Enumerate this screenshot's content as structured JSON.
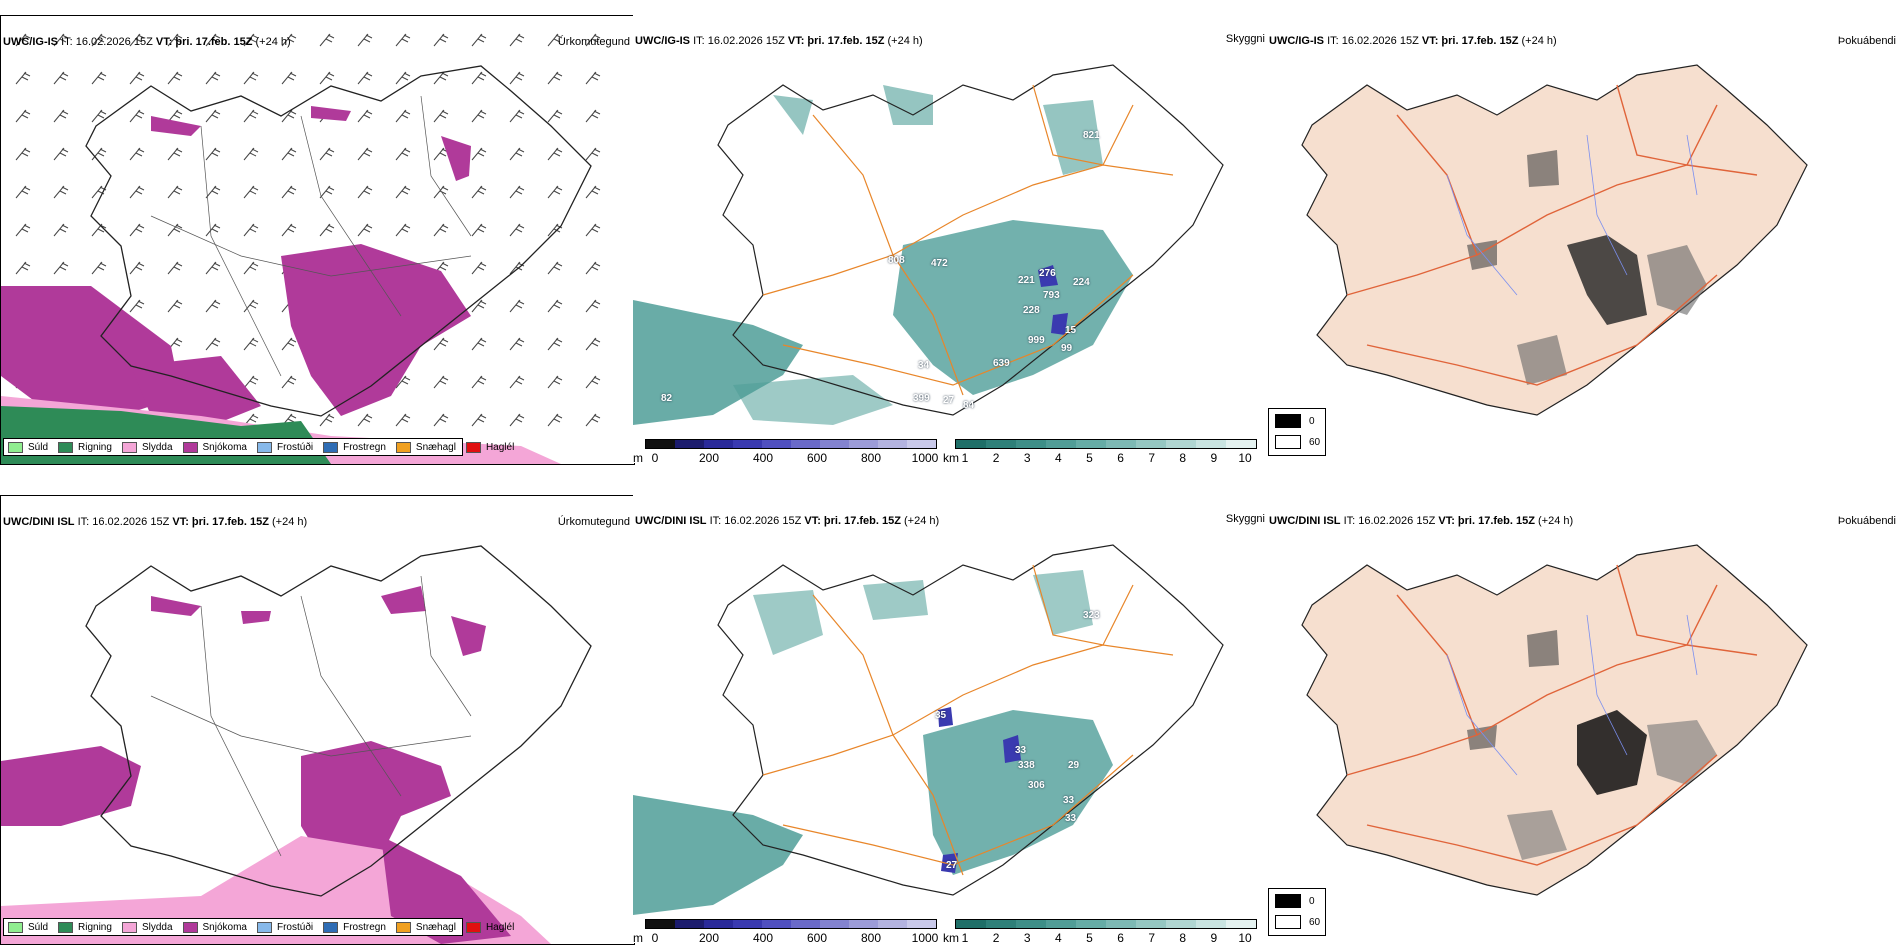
{
  "rows": [
    {
      "model": "UWC/IG-IS",
      "it_label": "IT: 16.02.2026 15Z",
      "vt_label": "VT: þri. 17.feb. 15Z",
      "lead": "(+24 h)",
      "precip_title": "Úrkomutegund",
      "vis_title": "Skyggni",
      "fog_title": "Þokuábendi",
      "vis_labels": [
        "821",
        "808",
        "472",
        "276",
        "221",
        "793",
        "224",
        "228",
        "999",
        "15",
        "99",
        "34",
        "639",
        "399",
        "27",
        "84",
        "82"
      ]
    },
    {
      "model": "UWC/DINI ISL",
      "it_label": "IT: 16.02.2026 15Z",
      "vt_label": "VT: þri. 17.feb. 15Z",
      "lead": "(+24 h)",
      "precip_title": "Úrkomutegund",
      "vis_title": "Skyggni",
      "fog_title": "Þokuábendi",
      "vis_labels": [
        "323",
        "35",
        "33",
        "338",
        "29",
        "306",
        "33",
        "33",
        "27"
      ]
    }
  ],
  "precip_legend": [
    {
      "label": "Súld",
      "color": "#90ee90"
    },
    {
      "label": "Rigning",
      "color": "#2e8b57"
    },
    {
      "label": "Slydda",
      "color": "#f4a6d7"
    },
    {
      "label": "Snjókoma",
      "color": "#b03a9a"
    },
    {
      "label": "Frostúði",
      "color": "#87b9ea"
    },
    {
      "label": "Frostregn",
      "color": "#2f6db5"
    },
    {
      "label": "Snæhagl",
      "color": "#f0a020"
    },
    {
      "label": "Haglél",
      "color": "#e01010"
    }
  ],
  "cbar_height": {
    "unit": "m",
    "ticks": [
      "0",
      "200",
      "400",
      "600",
      "800",
      "1000"
    ],
    "colors": [
      "#111111",
      "#1c1c6e",
      "#2a2a9a",
      "#3a3ab0",
      "#5050c0",
      "#6a6ac8",
      "#8383d0",
      "#9c9cd8",
      "#b3b3e0",
      "#c9c9ea"
    ]
  },
  "cbar_km": {
    "unit": "km",
    "ticks": [
      "1",
      "2",
      "3",
      "4",
      "5",
      "6",
      "7",
      "8",
      "9",
      "10"
    ],
    "colors": [
      "#1f6f68",
      "#2e8079",
      "#3e8f88",
      "#519d97",
      "#66aca6",
      "#7db9b4",
      "#95c7c2",
      "#b0d6d2",
      "#c9e4e1",
      "#e4f2f0"
    ]
  },
  "fog_legend": [
    {
      "label": "0",
      "color": "#000000"
    },
    {
      "label": "60",
      "color": "#ffffff"
    }
  ],
  "colors": {
    "land_fog": "#f6dfcf",
    "coast": "#333333",
    "roads": "#e8862a",
    "rivers": "#7b8ff0",
    "fog_roads": "#e0643a",
    "vis_teal": "#4f9e98",
    "snow": "#b03a9a",
    "rain": "#2e8b57",
    "sleet": "#f4a6d7"
  }
}
